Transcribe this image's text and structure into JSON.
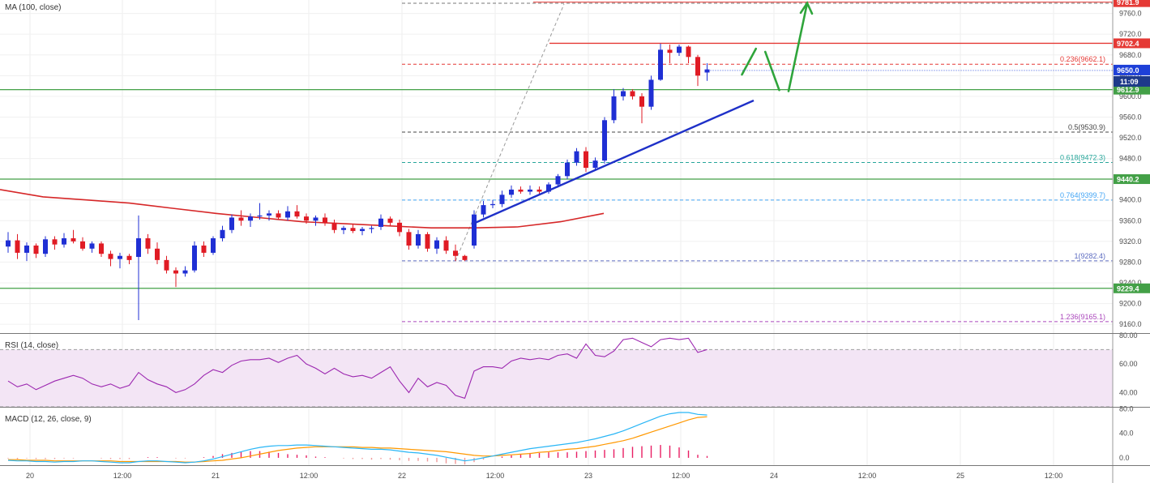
{
  "chart_data": [
    {
      "type": "candlestick",
      "pane": "price",
      "indicator_label": "MA (100, close)",
      "y_ticks": [
        "9760.0",
        "9720.0",
        "9680.0",
        "9640.0",
        "9600.0",
        "9560.0",
        "9520.0",
        "9480.0",
        "9440.0",
        "9400.0",
        "9360.0",
        "9320.0",
        "9280.0",
        "9240.0",
        "9200.0",
        "9160.0"
      ],
      "ylim": [
        9143,
        9786
      ],
      "x_ticks": [
        "20",
        "12:00",
        "21",
        "12:00",
        "22",
        "12:00",
        "23",
        "12:00",
        "24",
        "12:00",
        "25",
        "12:00"
      ],
      "candles": [
        {
          "o": 9310,
          "h": 9338,
          "l": 9298,
          "c": 9322
        },
        {
          "o": 9322,
          "h": 9334,
          "l": 9286,
          "c": 9298
        },
        {
          "o": 9298,
          "h": 9318,
          "l": 9282,
          "c": 9312
        },
        {
          "o": 9312,
          "h": 9316,
          "l": 9288,
          "c": 9296
        },
        {
          "o": 9296,
          "h": 9330,
          "l": 9290,
          "c": 9324
        },
        {
          "o": 9324,
          "h": 9330,
          "l": 9304,
          "c": 9314
        },
        {
          "o": 9314,
          "h": 9336,
          "l": 9308,
          "c": 9326
        },
        {
          "o": 9326,
          "h": 9342,
          "l": 9316,
          "c": 9320
        },
        {
          "o": 9320,
          "h": 9328,
          "l": 9302,
          "c": 9306
        },
        {
          "o": 9306,
          "h": 9320,
          "l": 9298,
          "c": 9316
        },
        {
          "o": 9316,
          "h": 9320,
          "l": 9290,
          "c": 9296
        },
        {
          "o": 9296,
          "h": 9302,
          "l": 9272,
          "c": 9286
        },
        {
          "o": 9286,
          "h": 9298,
          "l": 9268,
          "c": 9292
        },
        {
          "o": 9292,
          "h": 9296,
          "l": 9276,
          "c": 9284
        },
        {
          "o": 9290,
          "h": 9370,
          "l": 9168,
          "c": 9326
        },
        {
          "o": 9326,
          "h": 9334,
          "l": 9296,
          "c": 9306
        },
        {
          "o": 9306,
          "h": 9318,
          "l": 9276,
          "c": 9284
        },
        {
          "o": 9284,
          "h": 9292,
          "l": 9258,
          "c": 9264
        },
        {
          "o": 9264,
          "h": 9270,
          "l": 9232,
          "c": 9258
        },
        {
          "o": 9258,
          "h": 9272,
          "l": 9252,
          "c": 9264
        },
        {
          "o": 9264,
          "h": 9320,
          "l": 9260,
          "c": 9312
        },
        {
          "o": 9312,
          "h": 9320,
          "l": 9290,
          "c": 9298
        },
        {
          "o": 9298,
          "h": 9330,
          "l": 9294,
          "c": 9326
        },
        {
          "o": 9326,
          "h": 9350,
          "l": 9320,
          "c": 9342
        },
        {
          "o": 9342,
          "h": 9372,
          "l": 9336,
          "c": 9366
        },
        {
          "o": 9366,
          "h": 9380,
          "l": 9350,
          "c": 9360
        },
        {
          "o": 9360,
          "h": 9374,
          "l": 9348,
          "c": 9368
        },
        {
          "o": 9368,
          "h": 9394,
          "l": 9362,
          "c": 9370
        },
        {
          "o": 9370,
          "h": 9380,
          "l": 9360,
          "c": 9374
        },
        {
          "o": 9374,
          "h": 9380,
          "l": 9362,
          "c": 9366
        },
        {
          "o": 9366,
          "h": 9388,
          "l": 9360,
          "c": 9378
        },
        {
          "o": 9378,
          "h": 9390,
          "l": 9364,
          "c": 9368
        },
        {
          "o": 9368,
          "h": 9374,
          "l": 9354,
          "c": 9360
        },
        {
          "o": 9360,
          "h": 9370,
          "l": 9350,
          "c": 9366
        },
        {
          "o": 9366,
          "h": 9374,
          "l": 9350,
          "c": 9356
        },
        {
          "o": 9356,
          "h": 9362,
          "l": 9336,
          "c": 9342
        },
        {
          "o": 9342,
          "h": 9350,
          "l": 9334,
          "c": 9346
        },
        {
          "o": 9346,
          "h": 9354,
          "l": 9336,
          "c": 9340
        },
        {
          "o": 9340,
          "h": 9348,
          "l": 9332,
          "c": 9344
        },
        {
          "o": 9344,
          "h": 9350,
          "l": 9336,
          "c": 9346
        },
        {
          "o": 9348,
          "h": 9372,
          "l": 9342,
          "c": 9364
        },
        {
          "o": 9364,
          "h": 9368,
          "l": 9350,
          "c": 9356
        },
        {
          "o": 9356,
          "h": 9362,
          "l": 9330,
          "c": 9338
        },
        {
          "o": 9338,
          "h": 9344,
          "l": 9304,
          "c": 9312
        },
        {
          "o": 9312,
          "h": 9342,
          "l": 9306,
          "c": 9334
        },
        {
          "o": 9334,
          "h": 9338,
          "l": 9300,
          "c": 9306
        },
        {
          "o": 9306,
          "h": 9328,
          "l": 9296,
          "c": 9322
        },
        {
          "o": 9322,
          "h": 9330,
          "l": 9296,
          "c": 9302
        },
        {
          "o": 9302,
          "h": 9314,
          "l": 9282,
          "c": 9292
        },
        {
          "o": 9292,
          "h": 9294,
          "l": 9282,
          "c": 9284
        },
        {
          "o": 9312,
          "h": 9380,
          "l": 9306,
          "c": 9372
        },
        {
          "o": 9372,
          "h": 9398,
          "l": 9366,
          "c": 9390
        },
        {
          "o": 9390,
          "h": 9400,
          "l": 9384,
          "c": 9392
        },
        {
          "o": 9392,
          "h": 9418,
          "l": 9386,
          "c": 9410
        },
        {
          "o": 9410,
          "h": 9428,
          "l": 9404,
          "c": 9420
        },
        {
          "o": 9420,
          "h": 9426,
          "l": 9412,
          "c": 9416
        },
        {
          "o": 9416,
          "h": 9428,
          "l": 9410,
          "c": 9420
        },
        {
          "o": 9420,
          "h": 9426,
          "l": 9412,
          "c": 9416
        },
        {
          "o": 9416,
          "h": 9434,
          "l": 9412,
          "c": 9430
        },
        {
          "o": 9430,
          "h": 9450,
          "l": 9424,
          "c": 9446
        },
        {
          "o": 9446,
          "h": 9478,
          "l": 9440,
          "c": 9472
        },
        {
          "o": 9472,
          "h": 9500,
          "l": 9466,
          "c": 9494
        },
        {
          "o": 9494,
          "h": 9502,
          "l": 9454,
          "c": 9462
        },
        {
          "o": 9462,
          "h": 9482,
          "l": 9456,
          "c": 9476
        },
        {
          "o": 9476,
          "h": 9560,
          "l": 9470,
          "c": 9554
        },
        {
          "o": 9554,
          "h": 9614,
          "l": 9548,
          "c": 9600
        },
        {
          "o": 9600,
          "h": 9616,
          "l": 9592,
          "c": 9610
        },
        {
          "o": 9610,
          "h": 9614,
          "l": 9594,
          "c": 9600
        },
        {
          "o": 9600,
          "h": 9606,
          "l": 9548,
          "c": 9580
        },
        {
          "o": 9580,
          "h": 9640,
          "l": 9574,
          "c": 9632
        },
        {
          "o": 9632,
          "h": 9702,
          "l": 9630,
          "c": 9690
        },
        {
          "o": 9690,
          "h": 9700,
          "l": 9664,
          "c": 9684
        },
        {
          "o": 9684,
          "h": 9700,
          "l": 9678,
          "c": 9696
        },
        {
          "o": 9696,
          "h": 9698,
          "l": 9664,
          "c": 9676
        },
        {
          "o": 9676,
          "h": 9680,
          "l": 9620,
          "c": 9640
        },
        {
          "o": 9646,
          "h": 9664,
          "l": 9630,
          "c": 9652
        }
      ],
      "ma100": [
        9420,
        9406,
        9400,
        9394,
        9384,
        9374,
        9366,
        9358,
        9354,
        9350,
        9346,
        9346,
        9348,
        9358,
        9374
      ],
      "horizontal_lines": [
        {
          "name": "resistance-9781",
          "value": 9781.9,
          "label": "9781.9",
          "color": "#e53935",
          "style": "solid-thin"
        },
        {
          "name": "resistance-9702",
          "value": 9702.4,
          "label": "9702.4",
          "color": "#e53935",
          "style": "solid"
        },
        {
          "name": "support-9612",
          "value": 9612.9,
          "label": "9612.9",
          "color": "#43a047",
          "style": "solid"
        },
        {
          "name": "support-9440",
          "value": 9440.2,
          "label": "9440.2",
          "color": "#43a047",
          "style": "solid"
        },
        {
          "name": "support-9229",
          "value": 9229.4,
          "label": "9229.4",
          "color": "#43a047",
          "style": "solid"
        }
      ],
      "fib_levels": [
        {
          "ratio": "0.236",
          "value": 9662.1,
          "label": "0.236(9662.1)",
          "color": "#e53935"
        },
        {
          "ratio": "0.5",
          "value": 9530.9,
          "label": "0.5(9530.9)",
          "color": "#444444"
        },
        {
          "ratio": "0.618",
          "value": 9472.3,
          "label": "0.618(9472.3)",
          "color": "#26a69a"
        },
        {
          "ratio": "0.764",
          "value": 9399.7,
          "label": "0.764(9399.7)",
          "color": "#42a5f5"
        },
        {
          "ratio": "1",
          "value": 9282.4,
          "label": "1(9282.4)",
          "color": "#5c6bc0"
        },
        {
          "ratio": "1.236",
          "value": 9165.1,
          "label": "1.236(9165.1)",
          "color": "#ab47bc"
        }
      ],
      "current_price": {
        "value": 9650.0,
        "label": "9650.0",
        "countdown": "11:09",
        "color": "#1e40d8"
      },
      "trendline": {
        "from": {
          "candle": 50,
          "price": 9355
        },
        "to": {
          "candle": 80,
          "price": 9592
        },
        "color": "#1e30c8"
      },
      "projection": [
        {
          "candle": 77,
          "price": 9642
        },
        {
          "candle": 78.5,
          "price": 9692
        },
        {
          "candle": 79.5,
          "price": 9686
        },
        {
          "candle": 81,
          "price": 9612
        },
        {
          "candle": 82,
          "price": 9610
        },
        {
          "candle": 84,
          "price": 9780
        }
      ],
      "colors": {
        "up": "#1f2fd4",
        "down": "#e01b24",
        "ma": "#d62728",
        "projection": "#2fa53b"
      }
    },
    {
      "type": "line",
      "pane": "rsi",
      "indicator_label": "RSI (14, close)",
      "y_ticks": [
        "80.00",
        "60.00",
        "40.00"
      ],
      "ylim": [
        30,
        81
      ],
      "band": [
        30,
        70
      ],
      "values": [
        48,
        44,
        46,
        42,
        45,
        48,
        50,
        52,
        50,
        46,
        44,
        46,
        43,
        45,
        54,
        49,
        46,
        44,
        40,
        42,
        46,
        52,
        56,
        54,
        59,
        62,
        63,
        63,
        64,
        61,
        64,
        66,
        60,
        57,
        53,
        57,
        53,
        51,
        52,
        50,
        54,
        58,
        48,
        40,
        50,
        44,
        47,
        45,
        38,
        36,
        55,
        58,
        58,
        57,
        62,
        64,
        63,
        64,
        63,
        66,
        67,
        64,
        74,
        66,
        65,
        69,
        77,
        78,
        75,
        72,
        77,
        78,
        77,
        78,
        68,
        70
      ],
      "colors": {
        "line": "#9c27b0",
        "band": "#f3e5f5"
      }
    },
    {
      "type": "line",
      "pane": "macd",
      "indicator_label": "MACD (12, 26, close, 9)",
      "y_ticks": [
        "80.0",
        "40.0",
        "0.0"
      ],
      "ylim": [
        -12,
        82
      ],
      "macd": [
        -4,
        -5,
        -5,
        -6,
        -6,
        -7,
        -6,
        -6,
        -5,
        -5,
        -6,
        -7,
        -8,
        -8,
        -6,
        -5,
        -5,
        -6,
        -7,
        -8,
        -7,
        -5,
        -2,
        2,
        6,
        10,
        14,
        17,
        19,
        20,
        20,
        21,
        21,
        20,
        19,
        18,
        17,
        16,
        15,
        14,
        14,
        13,
        11,
        9,
        8,
        6,
        4,
        1,
        -2,
        -5,
        -3,
        0,
        3,
        6,
        9,
        12,
        15,
        17,
        19,
        21,
        23,
        25,
        28,
        31,
        35,
        39,
        44,
        50,
        56,
        62,
        68,
        72,
        74,
        74,
        71,
        70
      ],
      "signal": [
        -3,
        -3,
        -4,
        -4,
        -4,
        -5,
        -5,
        -5,
        -5,
        -5,
        -5,
        -5,
        -6,
        -6,
        -6,
        -6,
        -6,
        -6,
        -6,
        -7,
        -7,
        -6,
        -5,
        -4,
        -2,
        0,
        3,
        6,
        9,
        12,
        14,
        16,
        17,
        18,
        18,
        18,
        18,
        18,
        17,
        17,
        16,
        16,
        15,
        14,
        13,
        12,
        11,
        10,
        8,
        6,
        4,
        3,
        3,
        4,
        5,
        6,
        7,
        9,
        10,
        12,
        14,
        15,
        17,
        19,
        22,
        25,
        28,
        32,
        37,
        42,
        47,
        52,
        57,
        62,
        66,
        67
      ],
      "hist_colors": {
        "positive": "#e91e63",
        "negative": "#ef9a9a"
      },
      "colors": {
        "macd": "#29b6f6",
        "signal": "#ff9800"
      }
    }
  ]
}
